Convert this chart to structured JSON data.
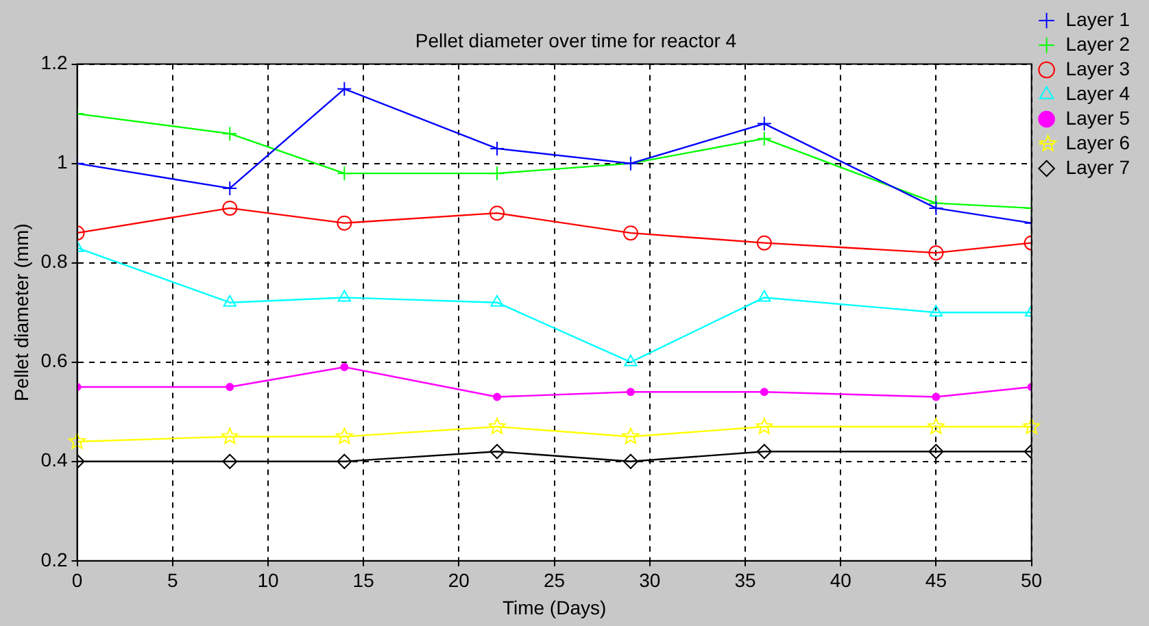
{
  "chart_data": {
    "type": "line",
    "title": "Pellet diameter over time for reactor 4",
    "xlabel": "Time (Days)",
    "ylabel": "Pellet diameter (mm)",
    "x": [
      0,
      8,
      14,
      22,
      29,
      36,
      45,
      50
    ],
    "series": [
      {
        "name": "Layer 1",
        "color": "#0000ff",
        "marker": "cross",
        "values": [
          1.0,
          0.95,
          1.15,
          1.03,
          1.0,
          1.08,
          0.91,
          0.88
        ]
      },
      {
        "name": "Layer 2",
        "color": "#00ff00",
        "marker": "cross",
        "values": [
          1.1,
          1.06,
          0.98,
          0.98,
          1.0,
          1.05,
          0.92,
          0.91
        ]
      },
      {
        "name": "Layer 3",
        "color": "#ff0000",
        "marker": "circle",
        "values": [
          0.86,
          0.91,
          0.88,
          0.9,
          0.86,
          0.84,
          0.82,
          0.84
        ]
      },
      {
        "name": "Layer 4",
        "color": "#00ffff",
        "marker": "triangle",
        "values": [
          0.83,
          0.72,
          0.73,
          0.72,
          0.6,
          0.73,
          0.7,
          0.7
        ]
      },
      {
        "name": "Layer 5",
        "color": "#ff00ff",
        "marker": "circle",
        "values": [
          0.55,
          0.55,
          0.59,
          0.53,
          0.54,
          0.54,
          0.53,
          0.55
        ]
      },
      {
        "name": "Layer 6",
        "color": "#ffff00",
        "marker": "star",
        "values": [
          0.44,
          0.45,
          0.45,
          0.47,
          0.45,
          0.47,
          0.47,
          0.47
        ]
      },
      {
        "name": "Layer 7",
        "color": "#000000",
        "marker": "diamond",
        "values": [
          0.4,
          0.4,
          0.4,
          0.42,
          0.4,
          0.42,
          0.42,
          0.42
        ]
      }
    ],
    "xlim": [
      0,
      50
    ],
    "xticks": [
      0,
      5,
      10,
      15,
      20,
      25,
      30,
      35,
      40,
      45,
      50
    ],
    "ylim": [
      0.2,
      1.2
    ],
    "yticks": [
      0.2,
      0.4,
      0.6,
      0.8,
      1,
      1.2
    ],
    "grid": true,
    "legend": "top right",
    "line_style": "solid"
  }
}
